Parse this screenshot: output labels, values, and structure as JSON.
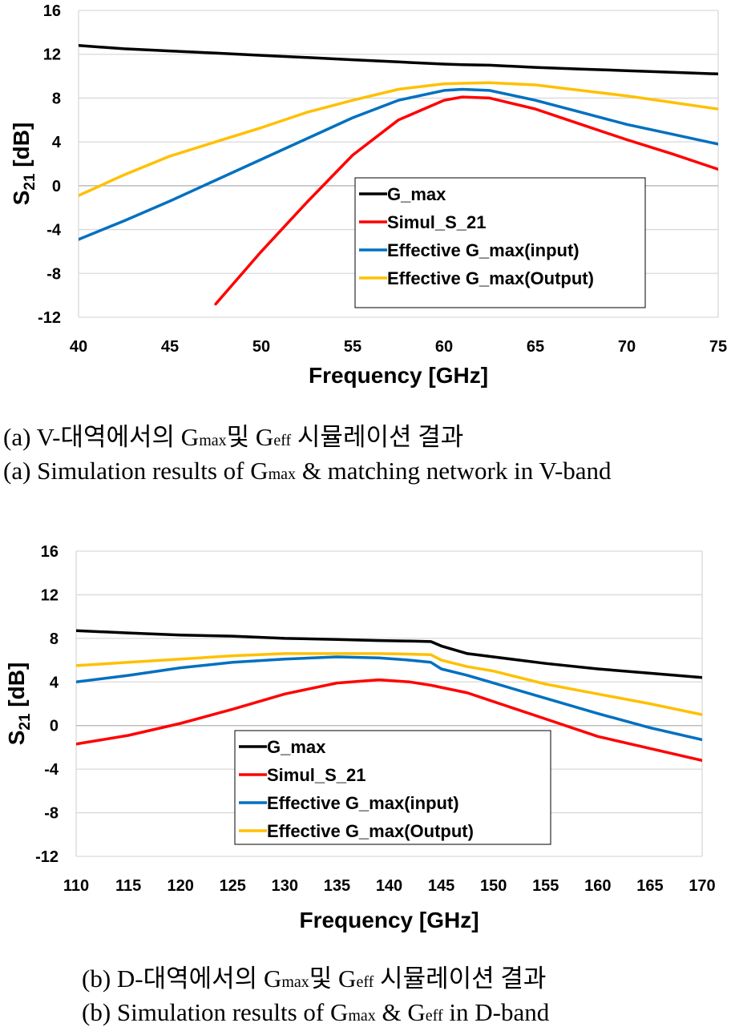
{
  "colors": {
    "G_max": "#000000",
    "Simul_S_21": "#ff0000",
    "Effective G_max(input)": "#0070c0",
    "Effective G_max(Output)": "#ffc000",
    "grid": "#d9d9d9"
  },
  "captions": {
    "a_korean": {
      "prefix": "(a) V-대역에서의 G",
      "sub1": "max",
      "mid": "및 G",
      "sub2": "eff",
      "suffix": " 시뮬레이션 결과"
    },
    "a_english": {
      "prefix": "(a) Simulation results of G",
      "sub1": "max",
      "suffix": " & matching network in V-band"
    },
    "b_korean": {
      "prefix": "(b) D-대역에서의 G",
      "sub1": "max",
      "mid": "및 G",
      "sub2": "eff",
      "suffix": " 시뮬레이션 결과"
    },
    "b_english": {
      "prefix": "(b) Simulation results of G",
      "sub1": "max",
      "mid": " & G",
      "sub2": "eff",
      "suffix": " in D-band"
    }
  },
  "chart_data": [
    {
      "type": "line",
      "xlabel": "Frequency [GHz]",
      "ylabel": "S21 [dB]",
      "ylabel_main": "S",
      "ylabel_sub": "21",
      "ylabel_unit": " [dB]",
      "xlim": [
        40,
        75
      ],
      "ylim": [
        -12,
        16
      ],
      "xticks": [
        40,
        45,
        50,
        55,
        60,
        65,
        70,
        75
      ],
      "yticks": [
        -12,
        -8,
        -4,
        0,
        4,
        8,
        12,
        16
      ],
      "grid": "horizontal",
      "legend_position": "center-right",
      "x": [
        40,
        42.5,
        45,
        47.5,
        50,
        52.5,
        55,
        57.5,
        60,
        61,
        62.5,
        65,
        67.5,
        70,
        72.5,
        75
      ],
      "series": [
        {
          "name": "G_max",
          "values": [
            12.8,
            12.5,
            12.3,
            12.1,
            11.9,
            11.7,
            11.5,
            11.3,
            11.1,
            11.05,
            11.0,
            10.8,
            10.65,
            10.5,
            10.35,
            10.2
          ]
        },
        {
          "name": "Simul_S_21",
          "values": [
            null,
            null,
            null,
            -10.8,
            -6.0,
            -1.5,
            2.8,
            6.0,
            7.8,
            8.1,
            8.0,
            7.0,
            5.6,
            4.2,
            2.9,
            1.5
          ]
        },
        {
          "name": "Effective G_max(input)",
          "values": [
            -4.9,
            -3.2,
            -1.4,
            0.5,
            2.4,
            4.3,
            6.2,
            7.8,
            8.7,
            8.8,
            8.7,
            7.8,
            6.7,
            5.6,
            4.7,
            3.8
          ]
        },
        {
          "name": "Effective G_max(Output)",
          "values": [
            -0.9,
            1.0,
            2.7,
            4.0,
            5.3,
            6.7,
            7.8,
            8.8,
            9.3,
            9.35,
            9.4,
            9.2,
            8.7,
            8.2,
            7.6,
            7.0
          ]
        }
      ]
    },
    {
      "type": "line",
      "xlabel": "Frequency [GHz]",
      "ylabel": "S21 [dB]",
      "ylabel_main": "S",
      "ylabel_sub": "21",
      "ylabel_unit": " [dB]",
      "xlim": [
        110,
        170
      ],
      "ylim": [
        -12,
        16
      ],
      "xticks": [
        110,
        115,
        120,
        125,
        130,
        135,
        140,
        145,
        150,
        155,
        160,
        165,
        170
      ],
      "yticks": [
        -12,
        -8,
        -4,
        0,
        4,
        8,
        12,
        16
      ],
      "grid": "horizontal",
      "legend_position": "center-left",
      "x": [
        110,
        115,
        120,
        125,
        130,
        135,
        139,
        142,
        144,
        145,
        147.5,
        150,
        155,
        160,
        165,
        170
      ],
      "series": [
        {
          "name": "G_max",
          "values": [
            8.7,
            8.5,
            8.3,
            8.2,
            8.0,
            7.9,
            7.8,
            7.75,
            7.7,
            7.3,
            6.6,
            6.3,
            5.7,
            5.2,
            4.8,
            4.4
          ]
        },
        {
          "name": "Simul_S_21",
          "values": [
            -1.7,
            -0.9,
            0.2,
            1.5,
            2.9,
            3.9,
            4.2,
            4.0,
            3.7,
            3.5,
            3.0,
            2.2,
            0.6,
            -1.0,
            -2.1,
            -3.2
          ]
        },
        {
          "name": "Effective G_max(input)",
          "values": [
            4.0,
            4.6,
            5.3,
            5.8,
            6.1,
            6.3,
            6.2,
            6.0,
            5.8,
            5.2,
            4.6,
            3.9,
            2.5,
            1.1,
            -0.2,
            -1.3
          ]
        },
        {
          "name": "Effective G_max(Output)",
          "values": [
            5.5,
            5.8,
            6.1,
            6.4,
            6.6,
            6.6,
            6.6,
            6.55,
            6.5,
            6.0,
            5.4,
            5.0,
            3.8,
            2.9,
            2.0,
            1.0
          ]
        }
      ]
    }
  ]
}
